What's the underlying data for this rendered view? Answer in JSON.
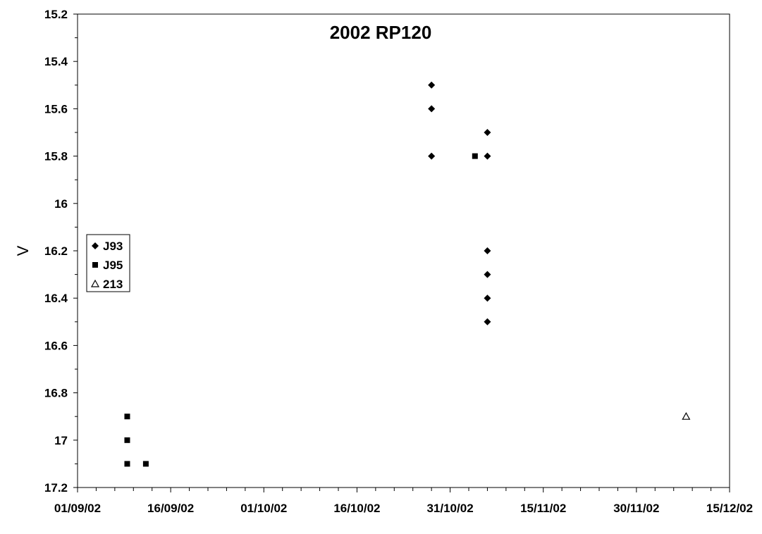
{
  "chart_data": {
    "type": "scatter",
    "title": "2002 RP120",
    "xlabel": "",
    "ylabel": "V",
    "y_inverted": true,
    "ylim": [
      15.2,
      17.2
    ],
    "y_ticks": [
      "15.2",
      "15.4",
      "15.6",
      "15.8",
      "16",
      "16.2",
      "16.4",
      "16.6",
      "16.8",
      "17",
      "17.2"
    ],
    "xlim": [
      "01/09/02",
      "15/12/02"
    ],
    "x_ticks": [
      "01/09/02",
      "16/09/02",
      "01/10/02",
      "16/10/02",
      "31/10/02",
      "15/11/02",
      "30/11/02",
      "15/12/02"
    ],
    "grid": false,
    "legend_position": "left",
    "series": [
      {
        "name": "J93",
        "marker": "diamond",
        "color": "#000000",
        "points": [
          {
            "x": "28/10/02",
            "y": 15.5
          },
          {
            "x": "28/10/02",
            "y": 15.6
          },
          {
            "x": "28/10/02",
            "y": 15.8
          },
          {
            "x": "06/11/02",
            "y": 15.7
          },
          {
            "x": "06/11/02",
            "y": 15.8
          },
          {
            "x": "06/11/02",
            "y": 16.2
          },
          {
            "x": "06/11/02",
            "y": 16.3
          },
          {
            "x": "06/11/02",
            "y": 16.4
          },
          {
            "x": "06/11/02",
            "y": 16.5
          }
        ]
      },
      {
        "name": "J95",
        "marker": "square",
        "color": "#000000",
        "points": [
          {
            "x": "04/11/02",
            "y": 15.8
          },
          {
            "x": "09/09/02",
            "y": 16.9
          },
          {
            "x": "09/09/02",
            "y": 17.0
          },
          {
            "x": "09/09/02",
            "y": 17.1
          },
          {
            "x": "12/09/02",
            "y": 17.1
          }
        ]
      },
      {
        "name": "213",
        "marker": "triangle-open",
        "color": "#000000",
        "points": [
          {
            "x": "08/12/02",
            "y": 16.9
          }
        ]
      }
    ]
  }
}
